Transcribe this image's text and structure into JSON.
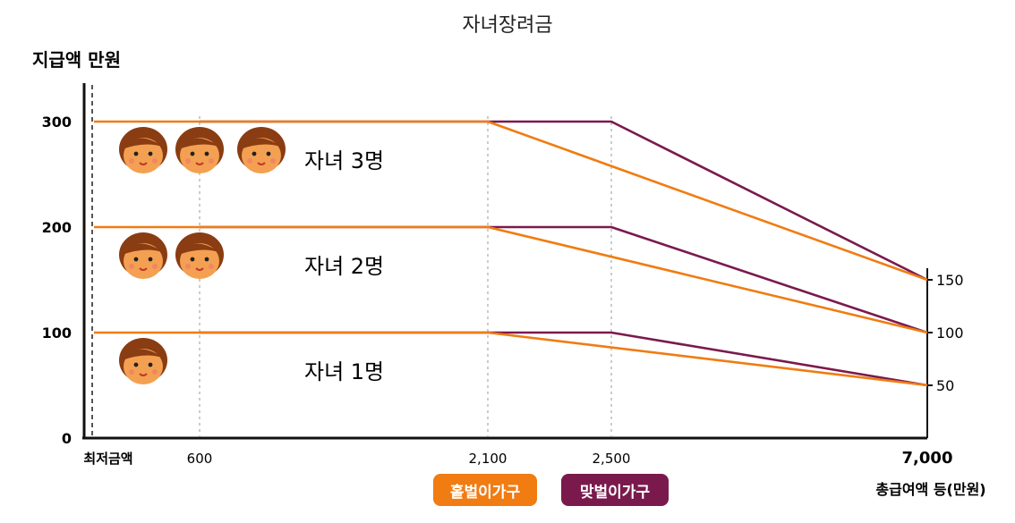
{
  "chart_data": {
    "type": "line",
    "title": "자녀장려금",
    "ylabel": "지급액 만원",
    "xlabel": "총급여액 등(만원)",
    "x_ticks": [
      "최저금액",
      "600",
      "2,100",
      "2,500",
      "7,000"
    ],
    "y_ticks": [
      "0",
      "100",
      "200",
      "300"
    ],
    "right_ticks": [
      "150",
      "100",
      "50"
    ],
    "ylim": [
      0,
      340
    ],
    "groups": [
      {
        "label": "자녀 3명",
        "children": 3
      },
      {
        "label": "자녀 2명",
        "children": 2
      },
      {
        "label": "자녀 1명",
        "children": 1
      }
    ],
    "series": [
      {
        "name": "홑벌이가구",
        "color": "#f07c12",
        "lines": [
          [
            [
              0,
              300
            ],
            [
              2100,
              300
            ],
            [
              7000,
              150
            ]
          ],
          [
            [
              0,
              200
            ],
            [
              2100,
              200
            ],
            [
              7000,
              100
            ]
          ],
          [
            [
              0,
              100
            ],
            [
              2100,
              100
            ],
            [
              7000,
              50
            ]
          ]
        ]
      },
      {
        "name": "맞벌이가구",
        "color": "#7a1a4c",
        "lines": [
          [
            [
              600,
              300
            ],
            [
              2500,
              300
            ],
            [
              7000,
              150
            ]
          ],
          [
            [
              600,
              200
            ],
            [
              2500,
              200
            ],
            [
              7000,
              100
            ]
          ],
          [
            [
              600,
              100
            ],
            [
              2500,
              100
            ],
            [
              7000,
              50
            ]
          ]
        ]
      }
    ]
  }
}
